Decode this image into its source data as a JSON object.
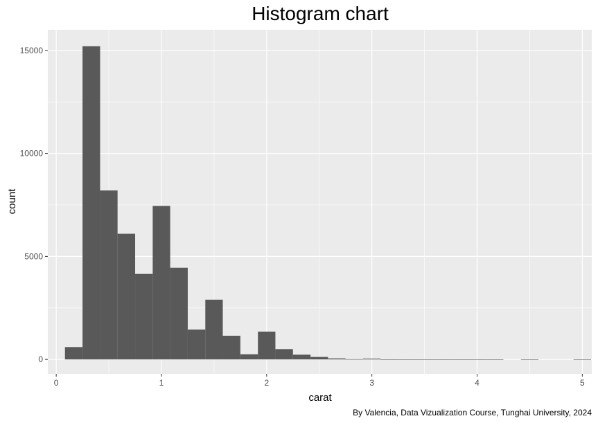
{
  "chart_data": {
    "type": "bar",
    "title": "Histogram chart",
    "xlabel": "carat",
    "ylabel": "count",
    "caption": "By Valencia, Data Vizualization Course, Tunghai University, 2024",
    "xlim": [
      -0.08,
      5.09
    ],
    "ylim": [
      -700,
      16000
    ],
    "x_ticks": [
      0,
      1,
      2,
      3,
      4,
      5
    ],
    "x_tick_labels": [
      "0",
      "1",
      "2",
      "3",
      "4",
      "5"
    ],
    "y_ticks": [
      0,
      5000,
      10000,
      15000
    ],
    "y_tick_labels": [
      "0",
      "5000",
      "10000",
      "15000"
    ],
    "grid": true,
    "bar_color": "#595959",
    "panel_background": "#ebebeb",
    "bin_width": 0.1667,
    "bins": [
      {
        "x_start": 0.083,
        "x_end": 0.25,
        "count": 600
      },
      {
        "x_start": 0.25,
        "x_end": 0.417,
        "count": 15200
      },
      {
        "x_start": 0.417,
        "x_end": 0.583,
        "count": 8200
      },
      {
        "x_start": 0.583,
        "x_end": 0.75,
        "count": 6100
      },
      {
        "x_start": 0.75,
        "x_end": 0.917,
        "count": 4150
      },
      {
        "x_start": 0.917,
        "x_end": 1.083,
        "count": 7450
      },
      {
        "x_start": 1.083,
        "x_end": 1.25,
        "count": 4450
      },
      {
        "x_start": 1.25,
        "x_end": 1.417,
        "count": 1450
      },
      {
        "x_start": 1.417,
        "x_end": 1.583,
        "count": 2900
      },
      {
        "x_start": 1.583,
        "x_end": 1.75,
        "count": 1150
      },
      {
        "x_start": 1.75,
        "x_end": 1.917,
        "count": 250
      },
      {
        "x_start": 1.917,
        "x_end": 2.083,
        "count": 1350
      },
      {
        "x_start": 2.083,
        "x_end": 2.25,
        "count": 500
      },
      {
        "x_start": 2.25,
        "x_end": 2.417,
        "count": 230
      },
      {
        "x_start": 2.417,
        "x_end": 2.583,
        "count": 120
      },
      {
        "x_start": 2.583,
        "x_end": 2.75,
        "count": 50
      },
      {
        "x_start": 2.75,
        "x_end": 2.917,
        "count": 10
      },
      {
        "x_start": 2.917,
        "x_end": 3.083,
        "count": 40
      },
      {
        "x_start": 3.083,
        "x_end": 3.25,
        "count": 5
      },
      {
        "x_start": 3.25,
        "x_end": 3.417,
        "count": 3
      },
      {
        "x_start": 3.417,
        "x_end": 3.583,
        "count": 3
      },
      {
        "x_start": 3.583,
        "x_end": 3.75,
        "count": 2
      },
      {
        "x_start": 3.75,
        "x_end": 3.917,
        "count": 1
      },
      {
        "x_start": 3.917,
        "x_end": 4.083,
        "count": 3
      },
      {
        "x_start": 4.083,
        "x_end": 4.25,
        "count": 1
      },
      {
        "x_start": 4.417,
        "x_end": 4.583,
        "count": 1
      },
      {
        "x_start": 4.917,
        "x_end": 5.083,
        "count": 1
      }
    ]
  }
}
